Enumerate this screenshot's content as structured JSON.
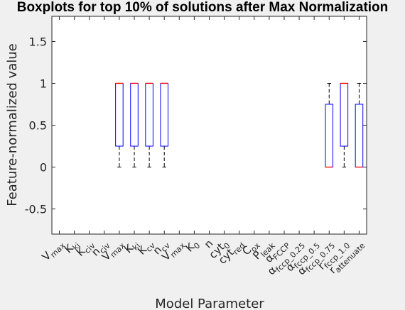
{
  "chart_data": {
    "type": "box",
    "title": "Boxplots for top 10% of solutions after Max Normalization",
    "xlabel": "Model Parameter",
    "ylabel": "Feature-normalized value",
    "ylim": [
      -0.8,
      1.8
    ],
    "yticks": [
      -0.5,
      0,
      0.5,
      1,
      1.5
    ],
    "ytick_labels": [
      "-0.5",
      "0",
      "0.5",
      "1",
      "1.5"
    ],
    "grid": false,
    "categories": [
      {
        "main": "V",
        "sub": "max"
      },
      {
        "main": "K",
        "sub": "ki"
      },
      {
        "main": "K",
        "sub": "civ"
      },
      {
        "main": "n",
        "sub": "civ"
      },
      {
        "main": "V",
        "sub": "max"
      },
      {
        "main": "K",
        "sub": "ki"
      },
      {
        "main": "K",
        "sub": "cv"
      },
      {
        "main": "n",
        "sub": "cv"
      },
      {
        "main": "V",
        "sub": "max"
      },
      {
        "main": "K",
        "sub": "0"
      },
      {
        "main": "n",
        "sub": ""
      },
      {
        "main": "cyt",
        "sub": "0"
      },
      {
        "main": "cyt",
        "sub": "red"
      },
      {
        "main": "C",
        "sub": "ox"
      },
      {
        "main": "P",
        "sub": "leak"
      },
      {
        "main": "α",
        "sub": "FCCP"
      },
      {
        "main": "α",
        "sub": "fccp_0.25"
      },
      {
        "main": "α",
        "sub": "fccp_0.5"
      },
      {
        "main": "α",
        "sub": "fccp_0.75"
      },
      {
        "main": "r",
        "sub": "fccp_1.0"
      },
      {
        "main": "r",
        "sub": "attenuate"
      }
    ],
    "boxes": [
      {
        "index": 4,
        "q1": 0.25,
        "median": 1.0,
        "q3": 1.0,
        "whisker_low": 0,
        "whisker_high": 1.0
      },
      {
        "index": 5,
        "q1": 0.25,
        "median": 1.0,
        "q3": 1.0,
        "whisker_low": 0,
        "whisker_high": 1.0
      },
      {
        "index": 6,
        "q1": 0.25,
        "median": 1.0,
        "q3": 1.0,
        "whisker_low": 0,
        "whisker_high": 1.0
      },
      {
        "index": 7,
        "q1": 0.25,
        "median": 1.0,
        "q3": 1.0,
        "whisker_low": 0,
        "whisker_high": 1.0
      },
      {
        "index": 18,
        "q1": 0,
        "median": 0,
        "q3": 0.75,
        "whisker_low": 0,
        "whisker_high": 1.0
      },
      {
        "index": 19,
        "q1": 0.25,
        "median": 1.0,
        "q3": 1.0,
        "whisker_low": 0,
        "whisker_high": 1.0
      },
      {
        "index": 20,
        "q1": 0,
        "median": 0,
        "q3": 0.75,
        "whisker_low": 0,
        "whisker_high": 1.0
      }
    ],
    "colors": {
      "box": "#0000ff",
      "median": "#ff0000",
      "whisker": "#000000",
      "axis": "#262626",
      "plot_bg": "#ffffff",
      "figure_bg": "#f0f0f0"
    }
  }
}
